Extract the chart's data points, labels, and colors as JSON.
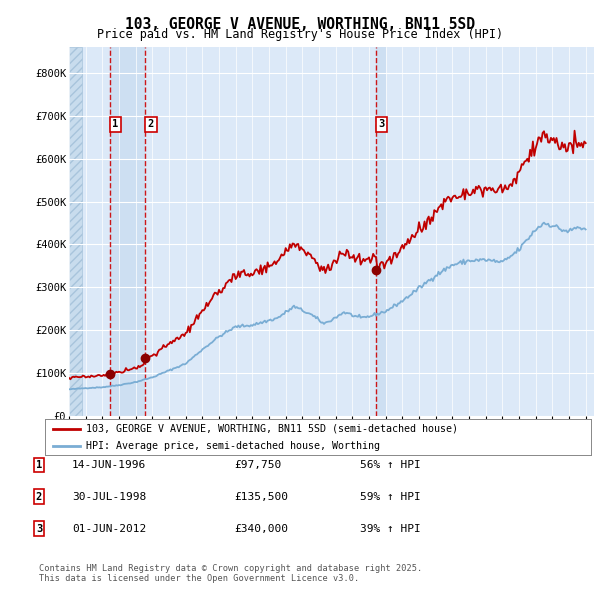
{
  "title": "103, GEORGE V AVENUE, WORTHING, BN11 5SD",
  "subtitle": "Price paid vs. HM Land Registry's House Price Index (HPI)",
  "legend_entries": [
    "103, GEORGE V AVENUE, WORTHING, BN11 5SD (semi-detached house)",
    "HPI: Average price, semi-detached house, Worthing"
  ],
  "transactions": [
    {
      "num": 1,
      "date": "14-JUN-1996",
      "year": 1996.45,
      "price": 97750,
      "hpi_pct": 56
    },
    {
      "num": 2,
      "date": "30-JUL-1998",
      "year": 1998.58,
      "price": 135500,
      "hpi_pct": 59
    },
    {
      "num": 3,
      "date": "01-JUN-2012",
      "year": 2012.42,
      "price": 340000,
      "hpi_pct": 39
    }
  ],
  "xmin": 1994.0,
  "xmax": 2025.5,
  "ymin": 0,
  "ymax": 860000,
  "yticks": [
    0,
    100000,
    200000,
    300000,
    400000,
    500000,
    600000,
    700000,
    800000
  ],
  "ylabels": [
    "£0",
    "£100K",
    "£200K",
    "£300K",
    "£400K",
    "£500K",
    "£600K",
    "£700K",
    "£800K"
  ],
  "background_color": "#dce9f8",
  "stripe_color": "#c8dcf0",
  "hatch_region_end": 1994.75,
  "grid_color": "#ffffff",
  "line_color_red": "#c00000",
  "line_color_blue": "#7aadd4",
  "dot_color_red": "#8b0000",
  "vline_color": "#cc0000",
  "footnote": "Contains HM Land Registry data © Crown copyright and database right 2025.\nThis data is licensed under the Open Government Licence v3.0."
}
